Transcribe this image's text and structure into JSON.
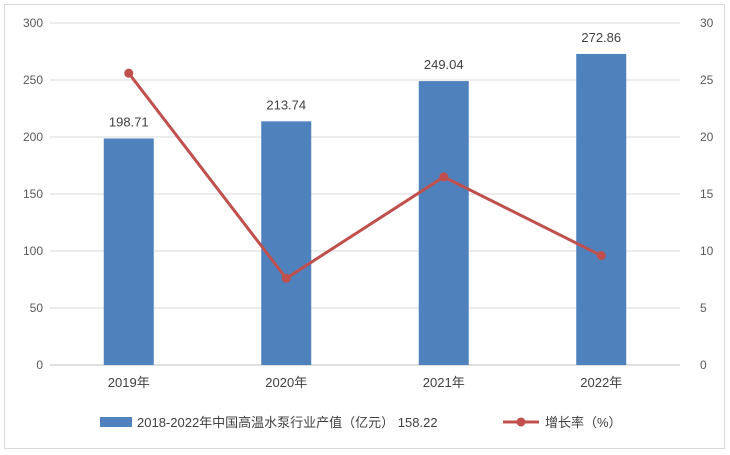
{
  "chart_data": {
    "type": "bar",
    "categories": [
      "2019年",
      "2020年",
      "2021年",
      "2022年"
    ],
    "series": [
      {
        "name": "2018-2022年中国高温水泵行业产值（亿元） 158.22",
        "type": "bar",
        "axis": "left",
        "values": [
          198.71,
          213.74,
          249.04,
          272.86
        ],
        "labels": [
          "198.71",
          "213.74",
          "249.04",
          "272.86"
        ],
        "color": "#4F81BD"
      },
      {
        "name": "增长率（%）",
        "type": "line",
        "axis": "right",
        "values": [
          25.6,
          7.6,
          16.5,
          9.6
        ],
        "color": "#C0504D"
      }
    ],
    "y_left": {
      "ylim": [
        0,
        300
      ],
      "ticks": [
        "0",
        "50",
        "100",
        "150",
        "200",
        "250",
        "300"
      ]
    },
    "y_right": {
      "ylim": [
        0,
        30
      ],
      "ticks": [
        "0",
        "5",
        "10",
        "15",
        "20",
        "25",
        "30"
      ]
    },
    "grid": true,
    "legend_position": "bottom"
  }
}
